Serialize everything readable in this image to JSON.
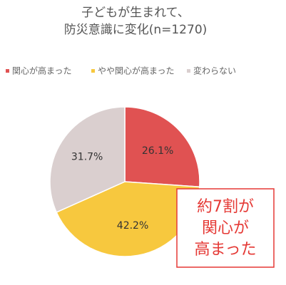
{
  "chart_data": {
    "type": "pie",
    "title": [
      "子どもが生まれて、",
      "防災意識に変化(n=1270)"
    ],
    "categories": [
      "関心が高まった",
      "やや関心が高まった",
      "変わらない"
    ],
    "values": [
      26.1,
      42.2,
      31.7
    ],
    "value_labels": [
      "26.1%",
      "42.2%",
      "31.7%"
    ],
    "colors": [
      "#e05252",
      "#f7c83e",
      "#dacfcf"
    ],
    "annotation": [
      "約7割が",
      "関心が",
      "高まった"
    ]
  }
}
